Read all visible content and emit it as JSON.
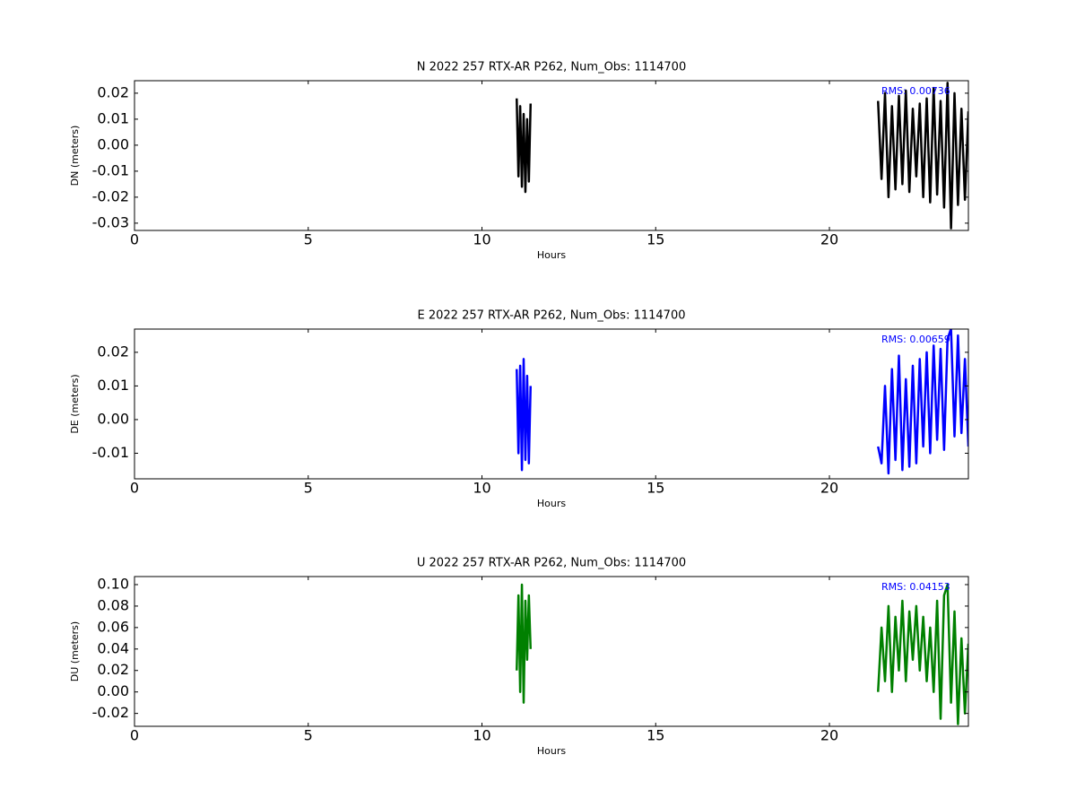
{
  "chart_data": [
    {
      "type": "line",
      "title": "N 2022 257 RTX-AR  P262, Num_Obs: 1114700",
      "xlabel": "Hours",
      "ylabel": "DN (meters)",
      "annotation": "RMS:  0.00736",
      "annotation_color": "#0000ff",
      "color": "#000000",
      "x": [
        11.0,
        11.05,
        11.1,
        11.15,
        11.2,
        11.25,
        11.3,
        11.35,
        11.4,
        16,
        21.4,
        21.5,
        21.6,
        21.7,
        21.8,
        21.9,
        22.0,
        22.1,
        22.2,
        22.3,
        22.4,
        22.5,
        22.6,
        22.7,
        22.8,
        22.9,
        23.0,
        23.1,
        23.2,
        23.3,
        23.4,
        23.5,
        23.6,
        23.7,
        23.8,
        23.9,
        24.0
      ],
      "values": [
        0.018,
        -0.012,
        0.015,
        -0.016,
        0.012,
        -0.018,
        0.01,
        -0.014,
        0.016,
        null,
        0.017,
        -0.013,
        0.02,
        -0.02,
        0.015,
        -0.017,
        0.019,
        -0.015,
        0.021,
        -0.018,
        0.014,
        -0.012,
        0.016,
        -0.02,
        0.018,
        -0.022,
        0.022,
        -0.019,
        0.017,
        -0.024,
        0.024,
        -0.032,
        0.02,
        -0.023,
        0.014,
        -0.021,
        0.013
      ],
      "xlim": [
        0,
        24
      ],
      "xticks": [
        0,
        5,
        10,
        15,
        20
      ],
      "ylim": [
        -0.0328,
        0.0248
      ],
      "yticks": [
        -0.03,
        -0.02,
        -0.01,
        {
          "value": 0,
          "label": "0.00"
        },
        0.01,
        0.02
      ]
    },
    {
      "type": "line",
      "title": "E 2022 257 RTX-AR  P262, Num_Obs: 1114700",
      "xlabel": "Hours",
      "ylabel": "DE (meters)",
      "annotation": "RMS:  0.00659",
      "annotation_color": "#0000ff",
      "color": "#0000ff",
      "x": [
        11.0,
        11.05,
        11.1,
        11.15,
        11.2,
        11.25,
        11.3,
        11.35,
        11.4,
        16,
        21.4,
        21.5,
        21.6,
        21.7,
        21.8,
        21.9,
        22.0,
        22.1,
        22.2,
        22.3,
        22.4,
        22.5,
        22.6,
        22.7,
        22.8,
        22.9,
        23.0,
        23.1,
        23.2,
        23.3,
        23.4,
        23.5,
        23.6,
        23.7,
        23.8,
        23.9,
        24.0
      ],
      "values": [
        0.015,
        -0.01,
        0.016,
        -0.015,
        0.018,
        -0.012,
        0.013,
        -0.013,
        0.01,
        null,
        -0.008,
        -0.013,
        0.01,
        -0.016,
        0.015,
        -0.012,
        0.019,
        -0.015,
        0.012,
        -0.014,
        0.016,
        -0.013,
        0.018,
        -0.008,
        0.02,
        -0.01,
        0.022,
        -0.006,
        0.021,
        -0.009,
        0.024,
        0.027,
        -0.005,
        0.025,
        -0.004,
        0.018,
        -0.008
      ],
      "xlim": [
        0,
        24
      ],
      "xticks": [
        0,
        5,
        10,
        15,
        20
      ],
      "ylim": [
        -0.0176,
        0.0269
      ],
      "yticks": [
        -0.01,
        {
          "value": 0,
          "label": "0.00"
        },
        0.01,
        0.02
      ]
    },
    {
      "type": "line",
      "title": "U 2022 257 RTX-AR  P262, Num_Obs: 1114700",
      "xlabel": "Hours",
      "ylabel": "DU (meters)",
      "annotation": "RMS:  0.04153",
      "annotation_color": "#0000ff",
      "color": "#008000",
      "x": [
        11.0,
        11.05,
        11.1,
        11.15,
        11.2,
        11.25,
        11.3,
        11.35,
        11.4,
        16,
        21.4,
        21.5,
        21.6,
        21.7,
        21.8,
        21.9,
        22.0,
        22.1,
        22.2,
        22.3,
        22.4,
        22.5,
        22.6,
        22.7,
        22.8,
        22.9,
        23.0,
        23.1,
        23.2,
        23.3,
        23.4,
        23.5,
        23.6,
        23.7,
        23.8,
        23.9,
        24.0
      ],
      "values": [
        0.02,
        0.09,
        0.0,
        0.1,
        -0.01,
        0.085,
        0.03,
        0.09,
        0.04,
        null,
        0.0,
        0.06,
        0.01,
        0.08,
        0.0,
        0.07,
        0.02,
        0.085,
        0.01,
        0.075,
        0.03,
        0.08,
        0.02,
        0.07,
        0.01,
        0.06,
        0.0,
        0.085,
        -0.025,
        0.09,
        0.1,
        -0.01,
        0.075,
        -0.03,
        0.05,
        -0.02,
        0.045
      ],
      "xlim": [
        0,
        24
      ],
      "xticks": [
        0,
        5,
        10,
        15,
        20
      ],
      "ylim": [
        -0.032,
        0.1075
      ],
      "yticks": [
        {
          "value": -0.02,
          "label": "-0.02"
        },
        {
          "value": 0,
          "label": "0.00"
        },
        {
          "value": 0.02,
          "label": "0.02"
        },
        {
          "value": 0.04,
          "label": "0.04"
        },
        {
          "value": 0.06,
          "label": "0.06"
        },
        {
          "value": 0.08,
          "label": "0.08"
        },
        {
          "value": 0.1,
          "label": "0.10"
        }
      ]
    }
  ]
}
